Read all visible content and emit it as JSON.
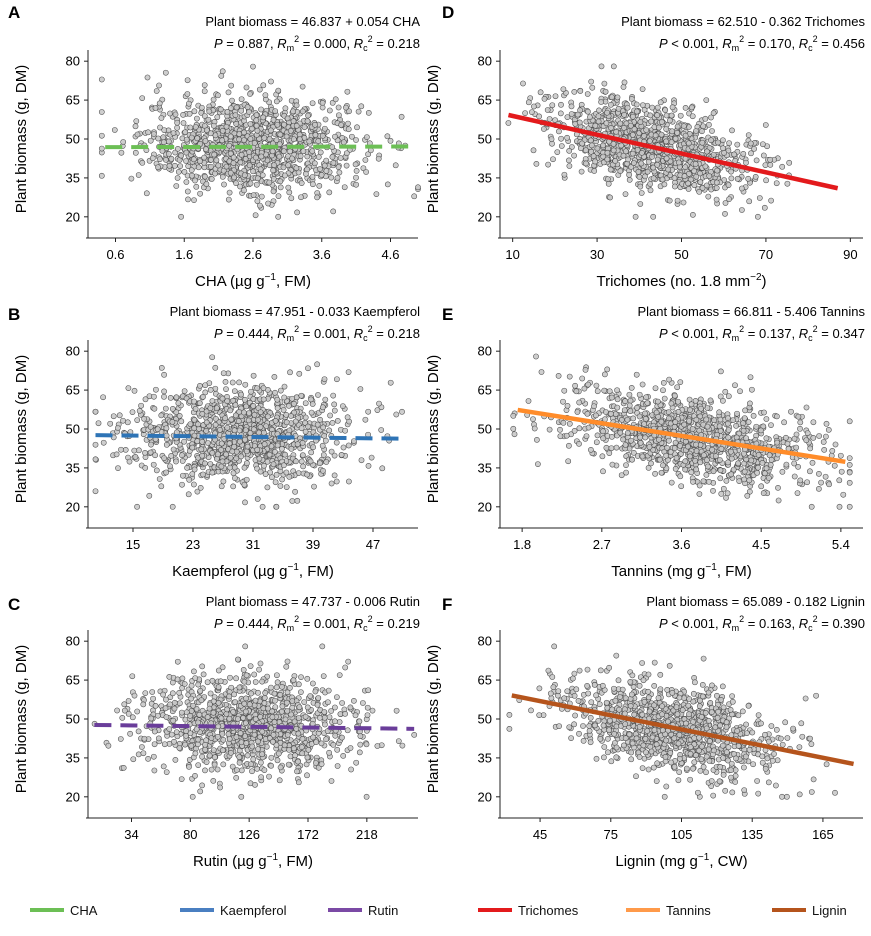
{
  "chart_data": [
    {
      "panel": "A",
      "type": "scatter",
      "equation": "Plant biomass = 46.837 + 0.054 CHA",
      "stats": {
        "p_label": "P",
        "p_value": " = 0.887, ",
        "rm_label": "R",
        "rm_sub": "m",
        "rm_value": "2 = 0.000, ",
        "rc_label": "R",
        "rc_sub": "c",
        "rc_value": "2 = 0.218"
      },
      "xlabel_main": "CHA (µg g",
      "xlabel_sup": "−1",
      "xlabel_tail": ", FM)",
      "ylabel": "Plant biomass (g, DM)",
      "xticks": [
        0.6,
        1.6,
        2.6,
        3.6,
        4.6
      ],
      "xlim": [
        0.2,
        5.0
      ],
      "yticks": [
        20,
        35,
        50,
        65,
        80
      ],
      "ylim": [
        18,
        82
      ],
      "line": {
        "x": [
          0.45,
          4.9
        ],
        "y": [
          46.86,
          47.1
        ],
        "style": "dashed",
        "color": "#6cbf55"
      },
      "cloud": {
        "center": [
          2.6,
          47.8
        ],
        "sd": [
          0.8,
          9.5
        ],
        "n": 1100,
        "xrange": [
          0.4,
          5.0
        ],
        "yrange": [
          20,
          78
        ]
      }
    },
    {
      "panel": "B",
      "type": "scatter",
      "equation": "Plant biomass = 47.951 - 0.033 Kaempferol",
      "stats": {
        "p_label": "P",
        "p_value": " = 0.444, ",
        "rm_label": "R",
        "rm_sub": "m",
        "rm_value": "2 = 0.001, ",
        "rc_label": "R",
        "rc_sub": "c",
        "rc_value": "2 = 0.218"
      },
      "xlabel_main": "Kaempferol (µg g",
      "xlabel_sup": "−1",
      "xlabel_tail": ", FM)",
      "ylabel": "Plant biomass (g, DM)",
      "xticks": [
        15,
        23,
        31,
        39,
        47
      ],
      "xlim": [
        9,
        53
      ],
      "yticks": [
        20,
        35,
        50,
        65,
        80
      ],
      "ylim": [
        18,
        82
      ],
      "line": {
        "x": [
          10,
          51
        ],
        "y": [
          47.62,
          46.27
        ],
        "style": "dashed",
        "color": "#2e74b6"
      },
      "cloud": {
        "center": [
          29,
          47.8
        ],
        "sd": [
          7.5,
          9.5
        ],
        "n": 1100,
        "xrange": [
          10,
          52
        ],
        "yrange": [
          20,
          78
        ]
      }
    },
    {
      "panel": "C",
      "type": "scatter",
      "equation": "Plant biomass = 47.737 - 0.006 Rutin",
      "stats": {
        "p_label": "P",
        "p_value": " = 0.444, ",
        "rm_label": "R",
        "rm_sub": "m",
        "rm_value": "2 = 0.001, ",
        "rc_label": "R",
        "rc_sub": "c",
        "rc_value": "2 = 0.219"
      },
      "xlabel_main": "Rutin (µg g",
      "xlabel_sup": "−1",
      "xlabel_tail": ", FM)",
      "ylabel": "Plant biomass (g, DM)",
      "xticks": [
        34,
        80,
        126,
        172,
        218
      ],
      "xlim": [
        0,
        258
      ],
      "yticks": [
        20,
        35,
        50,
        65,
        80
      ],
      "ylim": [
        18,
        82
      ],
      "line": {
        "x": [
          5,
          255
        ],
        "y": [
          47.71,
          46.21
        ],
        "style": "dashed",
        "color": "#6a3d9a"
      },
      "cloud": {
        "center": [
          125,
          47.8
        ],
        "sd": [
          42,
          9.5
        ],
        "n": 1100,
        "xrange": [
          3,
          255
        ],
        "yrange": [
          20,
          78
        ]
      }
    },
    {
      "panel": "D",
      "type": "scatter",
      "equation": "Plant biomass = 62.510 - 0.362 Trichomes",
      "stats": {
        "p_label": "P",
        "p_value": " < 0.001, ",
        "rm_label": "R",
        "rm_sub": "m",
        "rm_value": "2 = 0.170, ",
        "rc_label": "R",
        "rc_sub": "c",
        "rc_value": "2 = 0.456"
      },
      "xlabel_main": "Trichomes (no. 1.8 mm",
      "xlabel_sup": "−2",
      "xlabel_tail": ")",
      "ylabel": "Plant biomass (g, DM)",
      "xticks": [
        10,
        30,
        50,
        70,
        90
      ],
      "xlim": [
        7,
        93
      ],
      "yticks": [
        20,
        35,
        50,
        65,
        80
      ],
      "ylim": [
        18,
        82
      ],
      "line": {
        "x": [
          9,
          87
        ],
        "y": [
          59.25,
          31.01
        ],
        "style": "solid",
        "color": "#e31a1c"
      },
      "cloud": {
        "center": [
          42,
          47.3
        ],
        "sd": [
          12,
          8.5
        ],
        "n": 1100,
        "xrange": [
          9,
          90
        ],
        "yrange": [
          20,
          78
        ],
        "slope": -0.362
      }
    },
    {
      "panel": "E",
      "type": "scatter",
      "equation": "Plant biomass = 66.811 - 5.406 Tannins",
      "stats": {
        "p_label": "P",
        "p_value": " < 0.001, ",
        "rm_label": "R",
        "rm_sub": "m",
        "rm_value": "2 = 0.137, ",
        "rc_label": "R",
        "rc_sub": "c",
        "rc_value": "2 = 0.347"
      },
      "xlabel_main": "Tannins (mg g",
      "xlabel_sup": "−1",
      "xlabel_tail": ", FM)",
      "ylabel": "Plant biomass (g, DM)",
      "xticks": [
        1.8,
        2.7,
        3.6,
        4.5,
        5.4
      ],
      "xlim": [
        1.55,
        5.65
      ],
      "yticks": [
        20,
        35,
        50,
        65,
        80
      ],
      "ylim": [
        18,
        82
      ],
      "line": {
        "x": [
          1.75,
          5.45
        ],
        "y": [
          57.35,
          37.35
        ],
        "style": "solid",
        "color": "#ff8c2a"
      },
      "cloud": {
        "center": [
          3.7,
          46.8
        ],
        "sd": [
          0.7,
          8.5
        ],
        "n": 1100,
        "xrange": [
          1.7,
          5.5
        ],
        "yrange": [
          20,
          78
        ],
        "slope": -5.406
      }
    },
    {
      "panel": "F",
      "type": "scatter",
      "equation": "Plant biomass = 65.089 - 0.182 Lignin",
      "stats": {
        "p_label": "P",
        "p_value": " < 0.001, ",
        "rm_label": "R",
        "rm_sub": "m",
        "rm_value": "2 = 0.163, ",
        "rc_label": "R",
        "rc_sub": "c",
        "rc_value": "2 = 0.390"
      },
      "xlabel_main": "Lignin (mg g",
      "xlabel_sup": "−1",
      "xlabel_tail": ", CW)",
      "ylabel": "Plant biomass (g, DM)",
      "xticks": [
        45,
        75,
        105,
        135,
        165
      ],
      "xlim": [
        28,
        182
      ],
      "yticks": [
        20,
        35,
        50,
        65,
        80
      ],
      "ylim": [
        18,
        82
      ],
      "line": {
        "x": [
          33,
          178
        ],
        "y": [
          59.08,
          32.69
        ],
        "style": "solid",
        "color": "#b5541c"
      },
      "cloud": {
        "center": [
          100,
          47.0
        ],
        "sd": [
          22,
          8.5
        ],
        "n": 1100,
        "xrange": [
          32,
          180
        ],
        "yrange": [
          20,
          78
        ],
        "slope": -0.182
      }
    }
  ],
  "legend": [
    {
      "label": "CHA",
      "color": "#6cbf55"
    },
    {
      "label": "Kaempferol",
      "color": "#4a7fc1"
    },
    {
      "label": "Rutin",
      "color": "#7b4aa5"
    },
    {
      "label": "Trichomes",
      "color": "#e31a1c"
    },
    {
      "label": "Tannins",
      "color": "#ff9a4a"
    },
    {
      "label": "Lignin",
      "color": "#b5541c"
    }
  ]
}
